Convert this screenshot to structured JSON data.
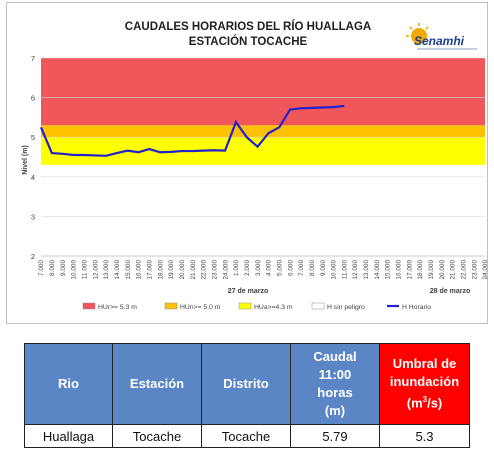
{
  "chart_data": {
    "type": "line",
    "title": "CAUDALES HORARIOS DEL RÍO HUALLAGA",
    "subtitle": "ESTACIÓN TOCACHE",
    "ylabel": "Nivel (m)",
    "ylim": [
      2,
      7
    ],
    "yticks": [
      "2",
      "3",
      "4",
      "5",
      "6",
      "7"
    ],
    "x_ticks": [
      "7.000",
      "8.000",
      "9.000",
      "10.000",
      "11.000",
      "12.000",
      "13.000",
      "14.000",
      "15.000",
      "16.000",
      "17.000",
      "18.000",
      "19.000",
      "20.000",
      "21.000",
      "22.000",
      "23.000",
      "24.000",
      "1.000",
      "2.000",
      "3.000",
      "4.000",
      "5.000",
      "6.000",
      "7.000",
      "8.000",
      "9.000",
      "10.000",
      "11.000",
      "12.000",
      "13.000",
      "14.000",
      "15.000",
      "16.000",
      "17.000",
      "18.000",
      "19.000",
      "20.000",
      "21.000",
      "22.000",
      "23.000",
      "24.000"
    ],
    "date_labels": [
      "27 de marzo",
      "28 de marzo"
    ],
    "bands": [
      {
        "name": "HUr>= 5.3 m",
        "from": 5.3,
        "to": 7.0,
        "color": "#f0575b"
      },
      {
        "name": "HUn>= 5.0 m",
        "from": 5.0,
        "to": 5.3,
        "color": "#ffc000"
      },
      {
        "name": "HUa>=4.3 m",
        "from": 4.3,
        "to": 5.0,
        "color": "#ffff00"
      },
      {
        "name": "H sin peligro",
        "from": 2.0,
        "to": 4.3,
        "color": "#ffffff"
      }
    ],
    "series": [
      {
        "name": "H Horario",
        "color": "#2222cc",
        "values": [
          5.25,
          4.6,
          4.58,
          4.55,
          4.55,
          4.54,
          4.53,
          4.6,
          4.66,
          4.62,
          4.7,
          4.62,
          4.63,
          4.65,
          4.65,
          4.66,
          4.67,
          4.66,
          5.38,
          5.0,
          4.76,
          5.1,
          5.25,
          5.7,
          5.73,
          5.74,
          5.75,
          5.76,
          5.79
        ]
      }
    ]
  },
  "logo": {
    "text": "Senamhi"
  },
  "table": {
    "headers": {
      "rio": "Rio",
      "estacion": "Estación",
      "distrito": "Distrito",
      "caudal_line1": "Caudal",
      "caudal_line2": "11:00",
      "caudal_line3": "horas",
      "caudal_line4": "(m)",
      "umbral_line1": "Umbral de",
      "umbral_line2": "inundación",
      "umbral_line3_base": "(m",
      "umbral_line3_sup": "3",
      "umbral_line3_end": "/s)"
    },
    "row": {
      "rio": "Huallaga",
      "estacion": "Tocache",
      "distrito": "Tocache",
      "caudal": "5.79",
      "umbral": "5.3"
    }
  }
}
